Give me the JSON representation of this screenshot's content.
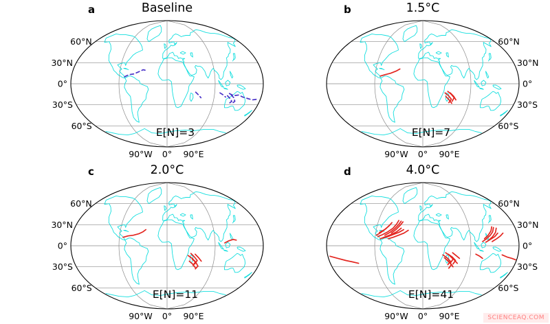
{
  "figure": {
    "watermark": "SCIENCEAQ.COM",
    "lat_labels": [
      "60°N",
      "30°N",
      "0°",
      "30°S",
      "60°S"
    ],
    "lat_values": [
      60,
      30,
      0,
      -30,
      -60
    ],
    "lon_labels": [
      "90°W",
      "0°",
      "90°E"
    ],
    "lon_values": [
      -90,
      0,
      90
    ],
    "colors": {
      "coastline": "#12dede",
      "grid": "#8a8a8a",
      "outline": "#000000",
      "baseline_track": "#4a33c8",
      "warming_track": "#e3251f",
      "watermark": "#ff8080",
      "watermark_bg": "#ffecec"
    },
    "panels": [
      {
        "id": "a",
        "letter": "a",
        "title": "Baseline",
        "en_label": "E[N]=3",
        "track_color": "#4a33c8",
        "track_dash": "5 4",
        "lat_labels_side": "left",
        "tracks": [
          [
            [
              -80,
              10
            ],
            [
              -72,
              13
            ],
            [
              -63,
              14
            ],
            [
              -54,
              17
            ],
            [
              -46,
              20
            ],
            [
              -40,
              19
            ]
          ],
          [
            [
              54,
              -12
            ],
            [
              60,
              -16
            ],
            [
              65,
              -20
            ]
          ],
          [
            [
              100,
              -13
            ],
            [
              107,
              -16
            ],
            [
              112,
              -19
            ]
          ],
          [
            [
              118,
              -14
            ],
            [
              127,
              -17
            ],
            [
              136,
              -16
            ],
            [
              145,
              -19
            ],
            [
              155,
              -21
            ],
            [
              165,
              -23
            ],
            [
              174,
              -22
            ]
          ],
          [
            [
              115,
              -17
            ],
            [
              121,
              -21
            ],
            [
              126,
              -25
            ],
            [
              122,
              -28
            ]
          ],
          [
            [
              122,
              -16
            ],
            [
              128,
              -20
            ],
            [
              132,
              -25
            ],
            [
              128,
              -28
            ]
          ]
        ]
      },
      {
        "id": "b",
        "letter": "b",
        "title": "1.5°C",
        "en_label": "E[N]=7",
        "track_color": "#e3251f",
        "track_dash": "",
        "lat_labels_side": "right",
        "tracks": [
          [
            [
              -80,
              11
            ],
            [
              -71,
              13
            ],
            [
              -61,
              15
            ],
            [
              -51,
              18
            ],
            [
              -44,
              21
            ]
          ],
          [
            [
              42,
              -13
            ],
            [
              49,
              -17
            ],
            [
              55,
              -22
            ],
            [
              51,
              -27
            ]
          ],
          [
            [
              47,
              -11
            ],
            [
              54,
              -15
            ],
            [
              60,
              -20
            ],
            [
              57,
              -25
            ]
          ],
          [
            [
              44,
              -18
            ],
            [
              51,
              -23
            ],
            [
              57,
              -28
            ]
          ],
          [
            [
              52,
              -13
            ],
            [
              59,
              -18
            ],
            [
              64,
              -23
            ]
          ]
        ]
      },
      {
        "id": "c",
        "letter": "c",
        "title": "2.0°C",
        "en_label": "E[N]=11",
        "track_color": "#e3251f",
        "track_dash": "",
        "lat_labels_side": "left",
        "tracks": [
          [
            [
              -83,
              12
            ],
            [
              -74,
              14
            ],
            [
              -64,
              15
            ],
            [
              -54,
              17
            ],
            [
              -46,
              20
            ],
            [
              -41,
              23
            ]
          ],
          [
            [
              108,
              4
            ],
            [
              116,
              7
            ],
            [
              124,
              9
            ],
            [
              130,
              8
            ]
          ],
          [
            [
              40,
              -14
            ],
            [
              48,
              -18
            ],
            [
              55,
              -23
            ],
            [
              51,
              -28
            ]
          ],
          [
            [
              45,
              -11
            ],
            [
              52,
              -16
            ],
            [
              58,
              -21
            ],
            [
              54,
              -26
            ]
          ],
          [
            [
              48,
              -19
            ],
            [
              56,
              -24
            ],
            [
              61,
              -29
            ],
            [
              57,
              -33
            ]
          ],
          [
            [
              53,
              -12
            ],
            [
              60,
              -17
            ],
            [
              66,
              -22
            ]
          ],
          [
            [
              43,
              -22
            ],
            [
              50,
              -26
            ],
            [
              56,
              -31
            ]
          ]
        ]
      },
      {
        "id": "d",
        "letter": "d",
        "title": "4.0°C",
        "en_label": "E[N]=41",
        "track_color": "#e3251f",
        "track_dash": "",
        "lat_labels_side": "right",
        "tracks": [
          [
            [
              -85,
              13
            ],
            [
              -76,
              16
            ],
            [
              -67,
              20
            ],
            [
              -58,
              25
            ],
            [
              -52,
              31
            ],
            [
              -49,
              36
            ]
          ],
          [
            [
              -80,
              10
            ],
            [
              -70,
              13
            ],
            [
              -60,
              16
            ],
            [
              -50,
              20
            ],
            [
              -42,
              25
            ]
          ],
          [
            [
              -76,
              11
            ],
            [
              -66,
              13
            ],
            [
              -56,
              16
            ],
            [
              -46,
              19
            ],
            [
              -37,
              23
            ]
          ],
          [
            [
              -72,
              15
            ],
            [
              -63,
              19
            ],
            [
              -55,
              24
            ],
            [
              -48,
              30
            ],
            [
              -44,
              35
            ]
          ],
          [
            [
              -88,
              15
            ],
            [
              -80,
              19
            ],
            [
              -72,
              24
            ],
            [
              -66,
              29
            ]
          ],
          [
            [
              -65,
              10
            ],
            [
              -56,
              12
            ],
            [
              -46,
              15
            ],
            [
              -36,
              18
            ],
            [
              -28,
              22
            ]
          ],
          [
            [
              -60,
              18
            ],
            [
              -52,
              23
            ],
            [
              -45,
              29
            ],
            [
              -40,
              34
            ]
          ],
          [
            [
              -83,
              19
            ],
            [
              -74,
              23
            ],
            [
              -67,
              28
            ],
            [
              -62,
              33
            ]
          ],
          [
            [
              -176,
              -15
            ],
            [
              -162,
              -18
            ],
            [
              -148,
              -21
            ],
            [
              -136,
              -23
            ],
            [
              -125,
              -25
            ]
          ],
          [
            [
              112,
              6
            ],
            [
              120,
              10
            ],
            [
              128,
              15
            ],
            [
              134,
              20
            ],
            [
              138,
              26
            ]
          ],
          [
            [
              118,
              5
            ],
            [
              127,
              9
            ],
            [
              136,
              13
            ],
            [
              143,
              18
            ]
          ],
          [
            [
              124,
              8
            ],
            [
              132,
              13
            ],
            [
              139,
              19
            ],
            [
              143,
              25
            ]
          ],
          [
            [
              116,
              10
            ],
            [
              124,
              15
            ],
            [
              131,
              21
            ],
            [
              135,
              27
            ]
          ],
          [
            [
              130,
              6
            ],
            [
              139,
              10
            ],
            [
              147,
              14
            ],
            [
              153,
              18
            ]
          ],
          [
            [
              38,
              -13
            ],
            [
              46,
              -17
            ],
            [
              53,
              -22
            ],
            [
              49,
              -27
            ]
          ],
          [
            [
              43,
              -10
            ],
            [
              51,
              -14
            ],
            [
              58,
              -19
            ],
            [
              54,
              -24
            ]
          ],
          [
            [
              41,
              -17
            ],
            [
              49,
              -22
            ],
            [
              56,
              -27
            ],
            [
              52,
              -32
            ]
          ],
          [
            [
              48,
              -12
            ],
            [
              56,
              -16
            ],
            [
              63,
              -21
            ],
            [
              59,
              -26
            ]
          ],
          [
            [
              46,
              -20
            ],
            [
              54,
              -25
            ],
            [
              60,
              -30
            ]
          ],
          [
            [
              52,
              -15
            ],
            [
              60,
              -20
            ],
            [
              67,
              -25
            ]
          ],
          [
            [
              56,
              -10
            ],
            [
              63,
              -14
            ],
            [
              70,
              -18
            ]
          ],
          [
            [
              150,
              -13
            ],
            [
              160,
              -16
            ],
            [
              170,
              -18
            ],
            [
              178,
              -20
            ]
          ],
          [
            [
              100,
              -12
            ],
            [
              108,
              -15
            ],
            [
              114,
              -18
            ]
          ]
        ]
      }
    ]
  }
}
